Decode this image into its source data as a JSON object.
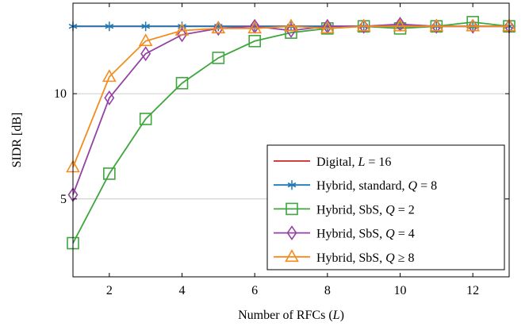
{
  "chart_data": {
    "type": "line",
    "title": "",
    "xlabel": "Number of RFCs (L)",
    "ylabel": "SIDR [dB]",
    "xlim": [
      1,
      13
    ],
    "ylim": [
      1.3,
      14.3
    ],
    "xticks": [
      2,
      4,
      6,
      8,
      10,
      12
    ],
    "yticks": [
      5,
      10
    ],
    "grid": "horizontal",
    "legend_position": "bottom-right",
    "series": [
      {
        "name": "Digital, L = 16",
        "color": "#cc2529",
        "marker": "none",
        "x": [
          1,
          13
        ],
        "y": [
          13.2,
          13.2
        ]
      },
      {
        "name": "Hybrid, standard, Q = 8",
        "color": "#1f77b4",
        "marker": "star",
        "x": [
          1,
          2,
          3,
          4,
          5,
          6,
          7,
          8,
          9,
          10,
          11,
          12,
          13
        ],
        "y": [
          13.2,
          13.2,
          13.2,
          13.2,
          13.2,
          13.2,
          13.2,
          13.2,
          13.2,
          13.2,
          13.2,
          13.2,
          13.2
        ]
      },
      {
        "name": "Hybrid, SbS, Q = 2",
        "color": "#3fa63f",
        "marker": "square",
        "x": [
          1,
          2,
          3,
          4,
          5,
          6,
          7,
          8,
          9,
          10,
          11,
          12,
          13
        ],
        "y": [
          2.9,
          6.2,
          8.8,
          10.5,
          11.7,
          12.5,
          12.9,
          13.1,
          13.2,
          13.1,
          13.2,
          13.4,
          13.2
        ]
      },
      {
        "name": "Hybrid, SbS, Q = 4",
        "color": "#9542a6",
        "marker": "diamond",
        "x": [
          1,
          2,
          3,
          4,
          5,
          6,
          7,
          8,
          9,
          10,
          11,
          12,
          13
        ],
        "y": [
          5.2,
          9.8,
          11.9,
          12.8,
          13.1,
          13.2,
          13.0,
          13.2,
          13.2,
          13.3,
          13.2,
          13.2,
          13.2
        ]
      },
      {
        "name": "Hybrid, SbS, Q ≥ 8",
        "color": "#f38c20",
        "marker": "triangle",
        "x": [
          1,
          2,
          3,
          4,
          5,
          6,
          7,
          8,
          9,
          10,
          11,
          12,
          13
        ],
        "y": [
          6.5,
          10.8,
          12.5,
          13.0,
          13.1,
          13.1,
          13.2,
          13.1,
          13.2,
          13.2,
          13.2,
          13.2,
          13.2
        ]
      }
    ],
    "legend": [
      {
        "label": "Digital, ",
        "math": "L = 16"
      },
      {
        "label": "Hybrid, standard, ",
        "math": "Q = 8"
      },
      {
        "label": "Hybrid, SbS, ",
        "math": "Q = 2"
      },
      {
        "label": "Hybrid, SbS, ",
        "math": "Q = 4"
      },
      {
        "label": "Hybrid, SbS, ",
        "math": "Q ≥ 8"
      }
    ]
  }
}
